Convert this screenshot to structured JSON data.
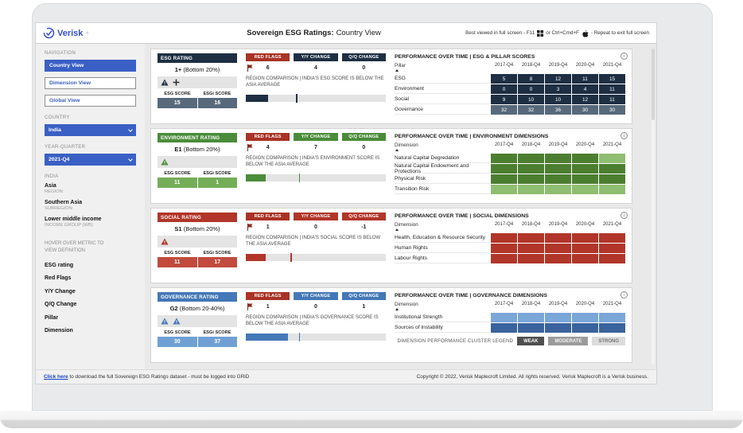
{
  "header": {
    "logo_text": "Verisk",
    "logo_mark": "®",
    "title_bold": "Sovereign ESG Ratings:",
    "title_rest": "Country View",
    "hint_prefix": "Best viewed in full screen - F11",
    "hint_middle": "or Ctrl+Cmd+F",
    "hint_suffix": "- Repeat to exit full screen"
  },
  "sidebar": {
    "nav_label": "NAVIGATION",
    "nav": [
      {
        "label": "Country View",
        "active": true
      },
      {
        "label": "Dimension View",
        "active": false
      },
      {
        "label": "Global View",
        "active": false
      }
    ],
    "country_label": "COUNTRY",
    "country_value": "India",
    "quarter_label": "YEAR-QUARTER",
    "quarter_value": "2021-Q4",
    "selected_country_header": "INDIA",
    "facts": [
      {
        "value": "Asia",
        "label": "REGION"
      },
      {
        "value": "Southern Asia",
        "label": "SUBREGION"
      },
      {
        "value": "Lower middle income",
        "label": "INCOME GROUP (WB)"
      }
    ],
    "hover_hint_line1": "HOVER OVER METRIC TO",
    "hover_hint_line2": "VIEW DEFINITION",
    "metrics": [
      "ESG rating",
      "Red Flags",
      "Y/Y Change",
      "Q/Q Change",
      "Pillar",
      "Dimension"
    ]
  },
  "panels": [
    {
      "id": "esg",
      "rating_header": "ESG RATING",
      "rating": "1+",
      "rating_note": "(Bottom 20%)",
      "icons": [
        "warning-triangle-icon",
        "plus-icon"
      ],
      "score_label": "ESG SCORE",
      "scorei_label": "ESGi SCORE",
      "score": "15",
      "scorei": "16",
      "red_flags_label": "RED FLAGS",
      "red_flags_value": "6",
      "yy_label": "Y/Y CHANGE",
      "yy_value": "4",
      "qq_label": "Q/Q CHANGE",
      "qq_value": "0",
      "comparison": "REGION COMPARISON | INDIA'S ESG SCORE IS BELOW THE ASIA AVERAGE",
      "bar": {
        "fill_pct": 16,
        "marker_pct": 36
      },
      "table": {
        "title": "PERFORMANCE OVER TIME | ESG & PILLAR SCORES",
        "row_header": "Pillar",
        "columns": [
          "2017-Q4",
          "2018-Q4",
          "2019-Q4",
          "2020-Q4",
          "2021-Q4"
        ],
        "rows": [
          {
            "label": "ESG",
            "values": [
              "5",
              "8",
              "12",
              "11",
              "15"
            ],
            "cells": [
              "navy",
              "navy",
              "navy",
              "navy",
              "navy"
            ]
          },
          {
            "label": "Environment",
            "values": [
              "0",
              "0",
              "3",
              "4",
              "11"
            ],
            "cells": [
              "navy",
              "navy",
              "navy",
              "navy",
              "navy"
            ]
          },
          {
            "label": "Social",
            "values": [
              "9",
              "10",
              "10",
              "12",
              "11"
            ],
            "cells": [
              "navy",
              "navy",
              "navy",
              "navy",
              "navy"
            ]
          },
          {
            "label": "Governance",
            "values": [
              "32",
              "32",
              "36",
              "30",
              "30"
            ],
            "cells": [
              "slate",
              "slate",
              "slate",
              "slate",
              "slate"
            ]
          }
        ]
      }
    },
    {
      "id": "environment",
      "rating_header": "ENVIRONMENT RATING",
      "rating": "E1",
      "rating_note": "(Bottom 20%)",
      "icons": [
        "warning-triangle-icon"
      ],
      "score_label": "ESG SCORE",
      "scorei_label": "ESGi SCORE",
      "score": "11",
      "scorei": "1",
      "red_flags_label": "RED FLAGS",
      "red_flags_value": "4",
      "yy_label": "Y/Y CHANGE",
      "yy_value": "7",
      "qq_label": "Q/Q CHANGE",
      "qq_value": "0",
      "comparison": "REGION COMPARISON | INDIA'S ENVIRONMENT SCORE IS BELOW THE ASIA AVERAGE",
      "bar": {
        "fill_pct": 14,
        "marker_pct": 38
      },
      "table": {
        "title": "PERFORMANCE OVER TIME | ENVIRONMENT DIMENSIONS",
        "row_header": "Dimension",
        "columns": [
          "2017-Q4",
          "2018-Q4",
          "2019-Q4",
          "2020-Q4",
          "2021-Q4"
        ],
        "rows": [
          {
            "label": "Natural Capital Degredation",
            "cells": [
              "gdark",
              "gdark",
              "gdark",
              "gdark",
              "glight"
            ]
          },
          {
            "label": "Natural Capital Endowment and Protections",
            "cells": [
              "gdark",
              "gdark",
              "gdark",
              "gdark",
              "gdark"
            ]
          },
          {
            "label": "Physical Risk",
            "cells": [
              "gdark",
              "gdark",
              "gdark",
              "gdark",
              "gdark"
            ]
          },
          {
            "label": "Transition Risk",
            "cells": [
              "glight",
              "glight",
              "glight",
              "glight",
              "glight"
            ]
          }
        ]
      }
    },
    {
      "id": "social",
      "rating_header": "SOCIAL RATING",
      "rating": "S1",
      "rating_note": "(Bottom 20%)",
      "icons": [
        "warning-triangle-icon"
      ],
      "score_label": "ESG SCORE",
      "scorei_label": "ESGi SCORE",
      "score": "11",
      "scorei": "17",
      "red_flags_label": "RED FLAGS",
      "red_flags_value": "1",
      "yy_label": "Y/Y CHANGE",
      "yy_value": "0",
      "qq_label": "Q/Q CHANGE",
      "qq_value": "-1",
      "comparison": "REGION COMPARISON | INDIA'S SOCIAL SCORE IS BELOW THE ASIA AVERAGE",
      "bar": {
        "fill_pct": 14,
        "marker_pct": 32
      },
      "table": {
        "title": "PERFORMANCE OVER TIME | SOCIAL DIMENSIONS",
        "row_header": "Dimension",
        "columns": [
          "2017-Q4",
          "2018-Q4",
          "2019-Q4",
          "2020-Q4",
          "2021-Q4"
        ],
        "rows": [
          {
            "label": "Health, Education & Resource Security",
            "cells": [
              "red",
              "red",
              "red",
              "red",
              "red"
            ]
          },
          {
            "label": "Human Rights",
            "cells": [
              "red",
              "red",
              "red",
              "red",
              "red"
            ]
          },
          {
            "label": "Labour Rights",
            "cells": [
              "red",
              "red",
              "red",
              "red",
              "red"
            ]
          }
        ]
      }
    },
    {
      "id": "governance",
      "rating_header": "GOVERNANCE RATING",
      "rating": "G2",
      "rating_note": "(Bottom 20-40%)",
      "icons": [
        "warning-triangle-icon",
        "warning-triangle-icon"
      ],
      "score_label": "ESG SCORE",
      "scorei_label": "ESGi SCORE",
      "score": "30",
      "scorei": "37",
      "red_flags_label": "RED FLAGS",
      "red_flags_value": "1",
      "yy_label": "Y/Y CHANGE",
      "yy_value": "0",
      "qq_label": "Q/Q CHANGE",
      "qq_value": "1",
      "comparison": "REGION COMPARISON | INDIA'S GOVERNANCE SCORE IS BELOW THE ASIA AVERAGE",
      "bar": {
        "fill_pct": 30,
        "marker_pct": 38
      },
      "table": {
        "title": "PERFORMANCE OVER TIME | GOVERNANCE DIMENSIONS",
        "row_header": "Dimension",
        "columns": [
          "2017-Q4",
          "2018-Q4",
          "2019-Q4",
          "2020-Q4",
          "2021-Q4"
        ],
        "rows": [
          {
            "label": "Institutional Strength",
            "cells": [
              "blight",
              "blight",
              "blight",
              "blight",
              "blight"
            ]
          },
          {
            "label": "Sources of Instability",
            "cells": [
              "bdark",
              "bdark",
              "bdark",
              "bdark",
              "bdark"
            ]
          }
        ]
      }
    }
  ],
  "legend": {
    "label": "DIMENSION PERFORMANCE CLUSTER LEGEND",
    "items": [
      {
        "label": "WEAK"
      },
      {
        "label": "MODERATE"
      },
      {
        "label": "STRONG"
      }
    ]
  },
  "footer": {
    "link_text": "Click here",
    "link_rest": " to download the full Sovereign ESG Ratings dataset - must be logged into GRiD",
    "copyright": "Copyright © 2022, Verisk Maplecroft Limited. All rights reserved. Verisk Maplecroft is a Verisk business."
  },
  "icons": {
    "logo": "verisk-logo-icon",
    "dropdown": "chevron-down-icon",
    "red_flags": "red-flag-icon",
    "warning": "warning-triangle-icon",
    "plus": "plus-icon",
    "info": "info-circle-icon",
    "sort": "sort-ascending-icon",
    "windows": "windows-logo-icon",
    "apple": "apple-logo-icon"
  },
  "colors": {
    "navy": "#1e2f44",
    "slate": "#57697b",
    "green": "#4a8c3a",
    "green_light": "#8fbd71",
    "red": "#b23529",
    "blue": "#4478b7",
    "blue_dark": "#3a639d",
    "blue_light": "#7aa6d8",
    "button_blue": "#3a5fc5",
    "brand_blue": "#3451d1",
    "red_flag_chip": "#a93325"
  }
}
